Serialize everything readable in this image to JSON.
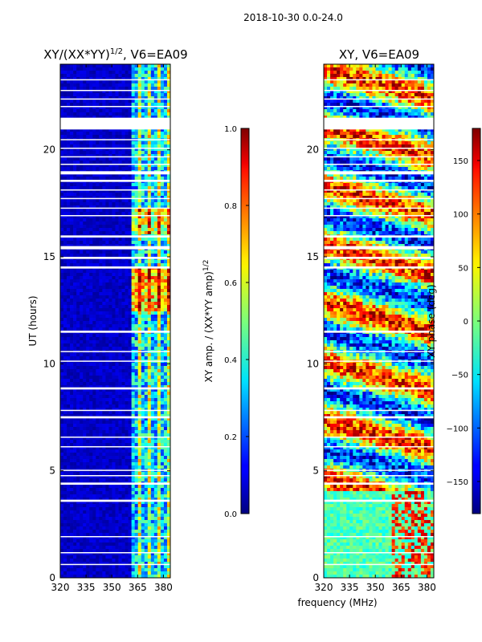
{
  "figure": {
    "suptitle": "2018-10-30 0.0-24.0",
    "shared_xlabel": "frequency (MHz)"
  },
  "chart_data": [
    {
      "type": "heatmap",
      "title_main": "XY/(XX*YY)",
      "title_sup": "1/2",
      "title_tail": ", V6=EA09",
      "xlabel": "frequency (MHz)",
      "ylabel": "UT (hours)",
      "xlim": [
        320,
        384
      ],
      "ylim": [
        0,
        24
      ],
      "x_ticks": [
        320,
        335,
        350,
        365,
        380
      ],
      "y_ticks": [
        0,
        5,
        10,
        15,
        20
      ],
      "colorbar": {
        "label_main": "XY amp. / (XX*YY amp)",
        "label_sup": "1/2",
        "range": [
          0.0,
          1.0
        ],
        "ticks": [
          "0.0",
          "0.2",
          "0.4",
          "0.6",
          "0.8",
          "1.0"
        ],
        "tick_values": [
          0.0,
          0.2,
          0.4,
          0.6,
          0.8,
          1.0
        ],
        "colormap": "jet"
      },
      "data_description": "Mostly low values (~0.05) across 320-360 MHz; elevated bands (0.3-0.8) between ~362-382 MHz, strongest around UT 12.5-14.5 and 16-17; white horizontal gaps mark flagged times.",
      "flagged_ut_ranges": [
        [
          0.6,
          0.65
        ],
        [
          1.15,
          1.2
        ],
        [
          1.9,
          1.95
        ],
        [
          3.55,
          3.65
        ],
        [
          4.35,
          4.45
        ],
        [
          4.75,
          4.8
        ],
        [
          5.0,
          5.05
        ],
        [
          6.1,
          6.15
        ],
        [
          6.55,
          6.6
        ],
        [
          7.45,
          7.55
        ],
        [
          7.8,
          7.85
        ],
        [
          8.8,
          8.9
        ],
        [
          10.1,
          10.15
        ],
        [
          10.55,
          10.6
        ],
        [
          11.45,
          11.55
        ],
        [
          14.45,
          14.55
        ],
        [
          14.9,
          15.0
        ],
        [
          15.35,
          15.5
        ],
        [
          15.9,
          16.0
        ],
        [
          16.9,
          16.95
        ],
        [
          17.25,
          17.3
        ],
        [
          17.7,
          17.75
        ],
        [
          18.1,
          18.15
        ],
        [
          18.5,
          18.6
        ],
        [
          18.85,
          19.0
        ],
        [
          19.3,
          19.35
        ],
        [
          19.65,
          19.7
        ],
        [
          20.05,
          20.1
        ],
        [
          20.45,
          20.5
        ],
        [
          20.95,
          21.5
        ],
        [
          22.0,
          22.05
        ],
        [
          22.35,
          22.4
        ],
        [
          22.75,
          22.8
        ],
        [
          23.25,
          23.3
        ]
      ]
    },
    {
      "type": "heatmap",
      "title_main": "XY, V6=EA09",
      "xlabel": "frequency (MHz)",
      "ylabel": "",
      "xlim": [
        320,
        384
      ],
      "ylim": [
        0,
        24
      ],
      "x_ticks": [
        320,
        335,
        350,
        365,
        380
      ],
      "y_ticks": [
        0,
        5,
        10,
        15,
        20
      ],
      "colorbar": {
        "label_main": "XY phase (deg)",
        "range": [
          -180,
          180
        ],
        "ticks": [
          "150",
          "100",
          "50",
          "0",
          "−50",
          "−100",
          "−150"
        ],
        "tick_values": [
          150,
          100,
          50,
          0,
          -50,
          -100,
          -150
        ],
        "colormap": "jet"
      },
      "data_description": "Noisy phase over full range; smoother greenish (-30 to +30 deg) region at low UT (0-4 h) with red/orange structure near 360-384 MHz.",
      "flagged_ut_ranges": [
        [
          0.6,
          0.65
        ],
        [
          1.15,
          1.2
        ],
        [
          1.9,
          1.95
        ],
        [
          3.55,
          3.65
        ],
        [
          4.35,
          4.45
        ],
        [
          4.75,
          4.8
        ],
        [
          5.0,
          5.05
        ],
        [
          6.1,
          6.15
        ],
        [
          6.55,
          6.6
        ],
        [
          7.45,
          7.55
        ],
        [
          7.8,
          7.85
        ],
        [
          8.8,
          8.9
        ],
        [
          10.1,
          10.15
        ],
        [
          10.55,
          10.6
        ],
        [
          11.45,
          11.55
        ],
        [
          14.45,
          14.55
        ],
        [
          14.9,
          15.0
        ],
        [
          15.35,
          15.5
        ],
        [
          15.9,
          16.0
        ],
        [
          16.9,
          16.95
        ],
        [
          17.25,
          17.3
        ],
        [
          17.7,
          17.75
        ],
        [
          18.1,
          18.15
        ],
        [
          18.5,
          18.6
        ],
        [
          18.85,
          19.0
        ],
        [
          19.3,
          19.35
        ],
        [
          19.65,
          19.7
        ],
        [
          20.05,
          20.1
        ],
        [
          20.45,
          20.5
        ],
        [
          20.95,
          21.5
        ],
        [
          22.0,
          22.05
        ],
        [
          22.35,
          22.4
        ],
        [
          22.75,
          22.8
        ],
        [
          23.25,
          23.3
        ]
      ]
    }
  ]
}
